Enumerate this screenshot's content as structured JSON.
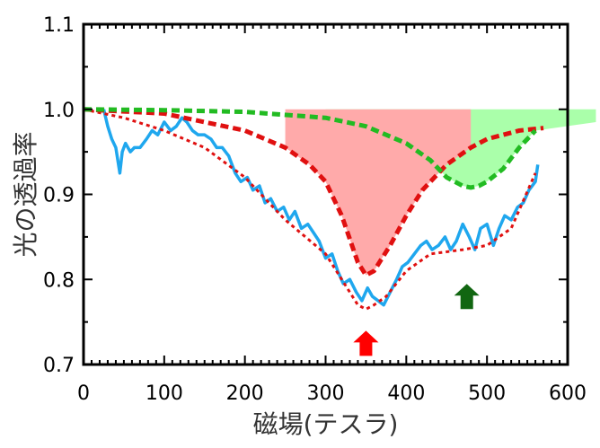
{
  "chart_data": {
    "type": "line",
    "title": "",
    "xlabel": "磁場(テスラ)",
    "ylabel": "光の透過率",
    "xlim": [
      0,
      600
    ],
    "ylim": [
      0.7,
      1.1
    ],
    "x_ticks": [
      "0",
      "100",
      "200",
      "300",
      "400",
      "500",
      "600"
    ],
    "y_ticks": [
      "0.7",
      "0.8",
      "0.9",
      "1.0",
      "1.1"
    ],
    "grid": false,
    "legend": "none",
    "series": [
      {
        "style": "solid",
        "color": "#1fa7ee",
        "x": [
          25,
          30,
          35,
          40,
          45,
          48,
          52,
          58,
          63,
          70,
          78,
          85,
          92,
          100,
          108,
          115,
          122,
          128,
          135,
          142,
          150,
          158,
          165,
          172,
          180,
          188,
          195,
          203,
          210,
          218,
          225,
          232,
          240,
          248,
          255,
          262,
          270,
          278,
          285,
          292,
          300,
          308,
          315,
          322,
          330,
          338,
          345,
          352,
          358,
          365,
          372,
          380,
          388,
          395,
          402,
          410,
          418,
          425,
          432,
          440,
          448,
          455,
          462,
          470,
          478,
          485,
          492,
          500,
          508,
          515,
          522,
          530,
          538,
          545,
          552,
          560,
          563
        ],
        "y": [
          1.0,
          0.98,
          0.965,
          0.955,
          0.925,
          0.95,
          0.96,
          0.95,
          0.955,
          0.955,
          0.965,
          0.975,
          0.97,
          0.985,
          0.975,
          0.98,
          0.99,
          0.985,
          0.975,
          0.97,
          0.97,
          0.965,
          0.955,
          0.955,
          0.945,
          0.925,
          0.915,
          0.92,
          0.905,
          0.91,
          0.89,
          0.895,
          0.88,
          0.885,
          0.87,
          0.88,
          0.86,
          0.865,
          0.855,
          0.845,
          0.825,
          0.83,
          0.81,
          0.795,
          0.8,
          0.785,
          0.775,
          0.79,
          0.78,
          0.775,
          0.77,
          0.785,
          0.8,
          0.815,
          0.82,
          0.83,
          0.84,
          0.845,
          0.835,
          0.84,
          0.85,
          0.835,
          0.845,
          0.865,
          0.85,
          0.835,
          0.86,
          0.865,
          0.84,
          0.86,
          0.875,
          0.87,
          0.885,
          0.89,
          0.905,
          0.915,
          0.935
        ]
      },
      {
        "style": "dotted",
        "color": "#e01010",
        "x": [
          0,
          50,
          100,
          150,
          200,
          250,
          300,
          340,
          350,
          360,
          375,
          400,
          430,
          470,
          500,
          530,
          560
        ],
        "y": [
          1.0,
          0.99,
          0.975,
          0.955,
          0.92,
          0.87,
          0.83,
          0.77,
          0.765,
          0.77,
          0.78,
          0.81,
          0.83,
          0.835,
          0.84,
          0.86,
          0.925
        ]
      },
      {
        "style": "dashed",
        "color": "#e01010",
        "x": [
          0,
          100,
          200,
          250,
          280,
          300,
          320,
          340,
          350,
          360,
          380,
          400,
          420,
          450,
          480,
          500,
          540,
          570
        ],
        "y": [
          1.0,
          0.995,
          0.975,
          0.955,
          0.935,
          0.915,
          0.875,
          0.82,
          0.805,
          0.81,
          0.84,
          0.875,
          0.905,
          0.935,
          0.955,
          0.965,
          0.975,
          0.978
        ]
      },
      {
        "style": "dashed",
        "color": "#22bb22",
        "x": [
          0,
          100,
          200,
          300,
          350,
          400,
          430,
          450,
          470,
          480,
          490,
          500,
          520,
          540,
          560
        ],
        "y": [
          1.0,
          0.999,
          0.997,
          0.99,
          0.98,
          0.96,
          0.94,
          0.92,
          0.91,
          0.908,
          0.91,
          0.915,
          0.93,
          0.955,
          0.975
        ]
      }
    ],
    "filled_regions": [
      {
        "color": "#ffaaaa",
        "between": "red-dashed and 1.0",
        "x_range": [
          230,
          480
        ]
      },
      {
        "color": "#aaffaa",
        "between": "green-dashed and 1.0",
        "x_range": [
          300,
          635
        ]
      }
    ],
    "annotations": [
      {
        "type": "arrow-up",
        "color": "#ff0000",
        "x": 350,
        "y": 0.725
      },
      {
        "type": "arrow-up",
        "color": "#116611",
        "x": 475,
        "y": 0.78
      }
    ]
  }
}
